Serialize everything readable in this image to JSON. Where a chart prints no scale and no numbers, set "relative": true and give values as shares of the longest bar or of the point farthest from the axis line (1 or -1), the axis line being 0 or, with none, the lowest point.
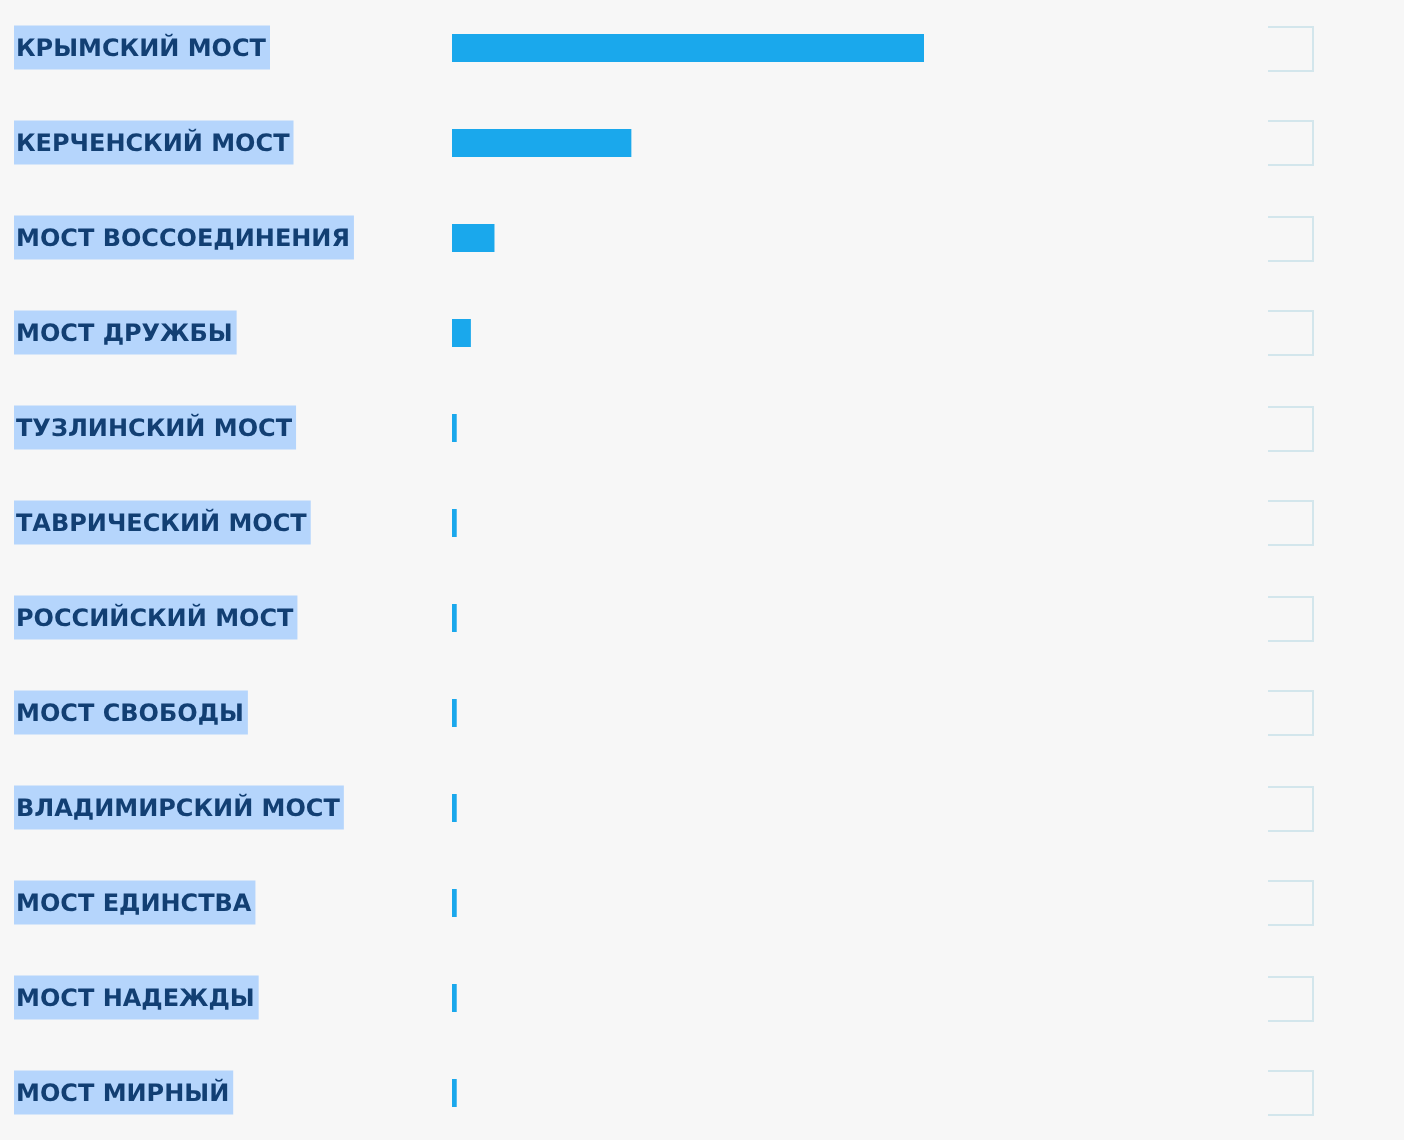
{
  "chart_data": {
    "type": "bar",
    "orientation": "horizontal",
    "relative": true,
    "categories": [
      "КРЫМСКИЙ МОСТ",
      "КЕРЧЕНСКИЙ МОСТ",
      "МОСТ ВОССОЕДИНЕНИЯ",
      "МОСТ ДРУЖБЫ",
      "ТУЗЛИНСКИЙ МОСТ",
      "ТАВРИЧЕСКИЙ МОСТ",
      "РОССИЙСКИЙ МОСТ",
      "МОСТ СВОБОДЫ",
      "ВЛАДИМИРСКИЙ МОСТ",
      "МОСТ ЕДИНСТВА",
      "МОСТ НАДЕЖДЫ",
      "МОСТ МИРНЫЙ"
    ],
    "values": [
      1,
      0.38,
      0.09,
      0.04,
      0.01,
      0.01,
      0.01,
      0.01,
      0.01,
      0.01,
      0.01,
      0.01
    ],
    "color": "#1aa8ec"
  }
}
